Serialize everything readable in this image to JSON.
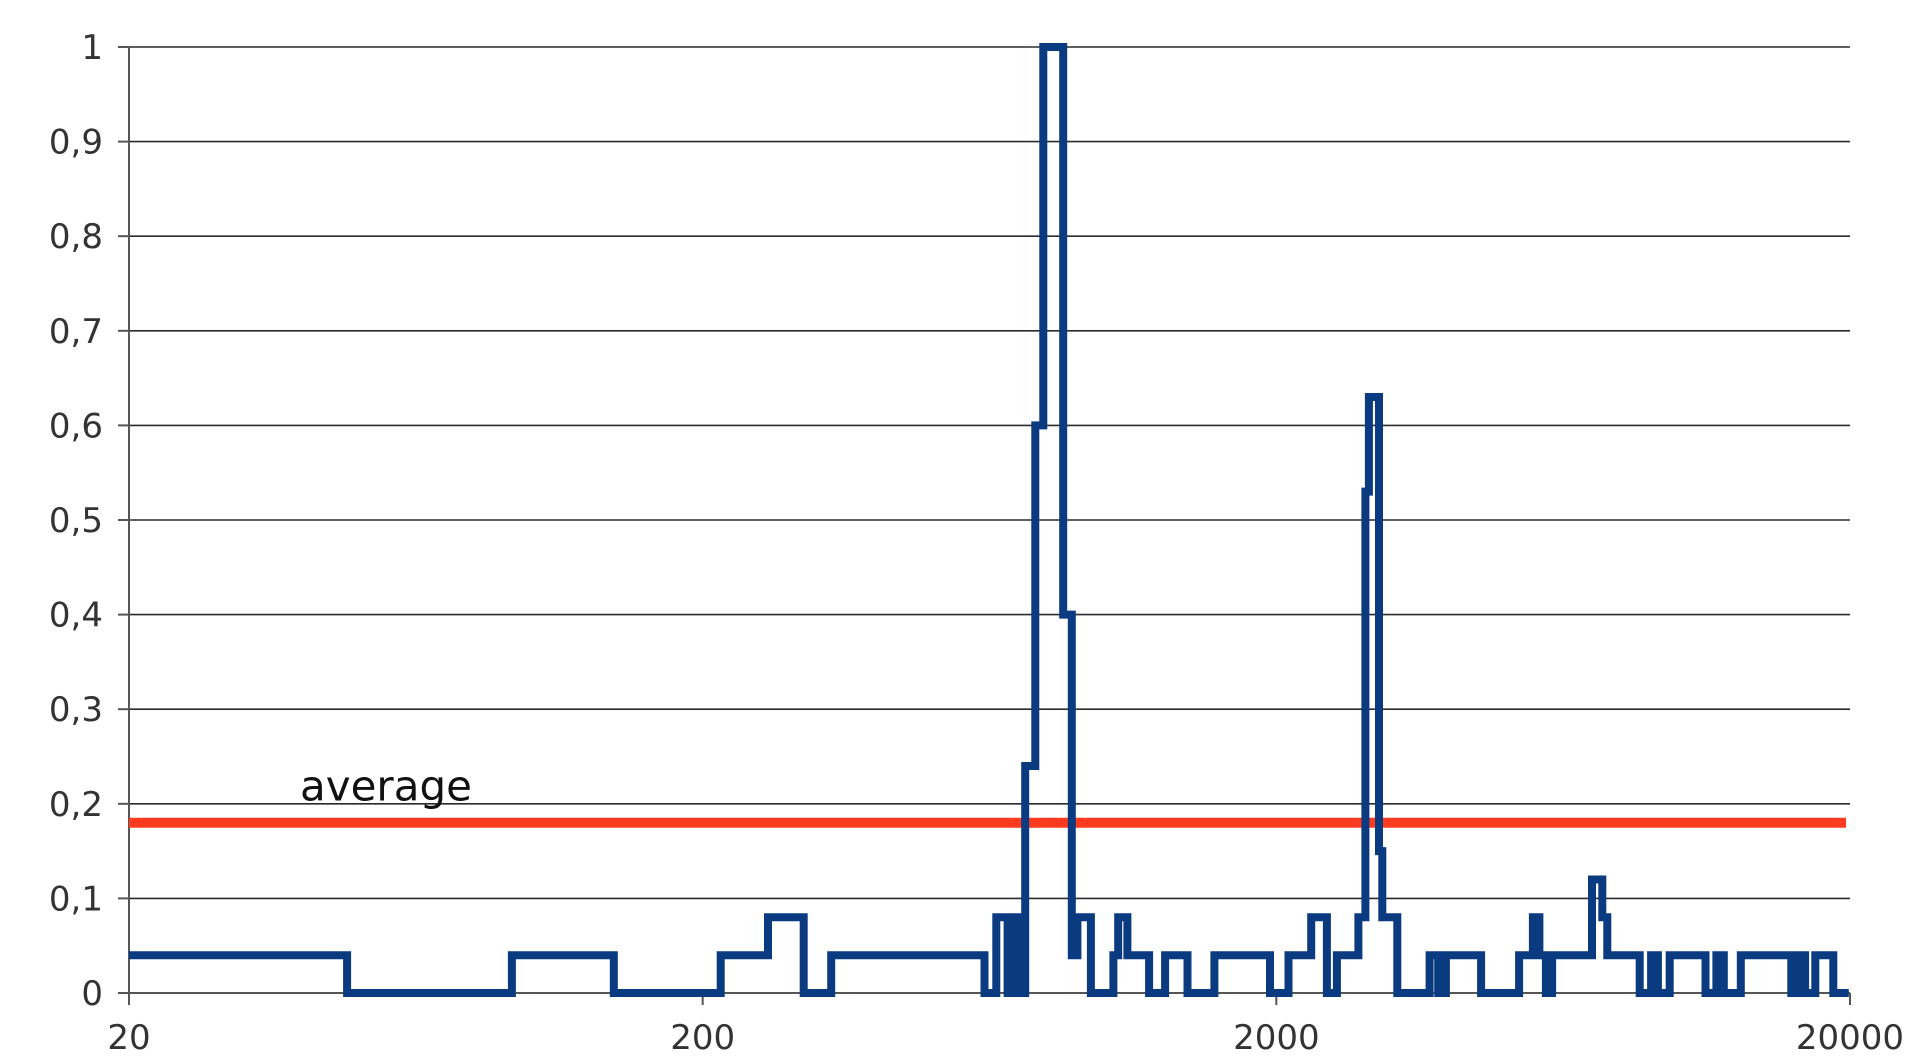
{
  "chart_data": {
    "type": "line",
    "title": "",
    "xlabel": "",
    "ylabel": "",
    "x_scale": "log",
    "xlim": [
      20,
      20000
    ],
    "ylim": [
      0,
      1
    ],
    "x_ticks": [
      20,
      200,
      2000,
      20000
    ],
    "x_tick_labels": [
      "20",
      "200",
      "2000",
      "20000"
    ],
    "y_ticks": [
      0,
      0.1,
      0.2,
      0.3,
      0.4,
      0.5,
      0.6,
      0.7,
      0.8,
      0.9,
      1
    ],
    "y_tick_labels": [
      "0",
      "0,1",
      "0,2",
      "0,3",
      "0,4",
      "0,5",
      "0,6",
      "0,7",
      "0,8",
      "0,9",
      "1"
    ],
    "grid": true,
    "series": [
      {
        "color": "#0a3a80",
        "line_style": "step",
        "points": [
          [
            20,
            0.04
          ],
          [
            48,
            0.04
          ],
          [
            48,
            0
          ],
          [
            93,
            0
          ],
          [
            93,
            0.04
          ],
          [
            140,
            0.04
          ],
          [
            140,
            0
          ],
          [
            215,
            0
          ],
          [
            215,
            0.04
          ],
          [
            260,
            0.04
          ],
          [
            260,
            0.08
          ],
          [
            300,
            0.08
          ],
          [
            300,
            0
          ],
          [
            335,
            0
          ],
          [
            335,
            0.04
          ],
          [
            620,
            0.04
          ],
          [
            620,
            0
          ],
          [
            650,
            0
          ],
          [
            650,
            0.08
          ],
          [
            680,
            0.08
          ],
          [
            680,
            0
          ],
          [
            695,
            0
          ],
          [
            695,
            0.08
          ],
          [
            710,
            0.08
          ],
          [
            710,
            0
          ],
          [
            730,
            0
          ],
          [
            730,
            0.24
          ],
          [
            760,
            0.24
          ],
          [
            760,
            0.6
          ],
          [
            785,
            0.6
          ],
          [
            785,
            1
          ],
          [
            850,
            1
          ],
          [
            850,
            0.4
          ],
          [
            880,
            0.4
          ],
          [
            880,
            0.04
          ],
          [
            900,
            0.04
          ],
          [
            900,
            0.08
          ],
          [
            950,
            0.08
          ],
          [
            950,
            0
          ],
          [
            1040,
            0
          ],
          [
            1040,
            0.04
          ],
          [
            1060,
            0.04
          ],
          [
            1060,
            0.08
          ],
          [
            1100,
            0.08
          ],
          [
            1100,
            0.04
          ],
          [
            1200,
            0.04
          ],
          [
            1200,
            0
          ],
          [
            1280,
            0
          ],
          [
            1280,
            0.04
          ],
          [
            1400,
            0.04
          ],
          [
            1400,
            0
          ],
          [
            1560,
            0
          ],
          [
            1560,
            0.04
          ],
          [
            1950,
            0.04
          ],
          [
            1950,
            0
          ],
          [
            2100,
            0
          ],
          [
            2100,
            0.04
          ],
          [
            2300,
            0.04
          ],
          [
            2300,
            0.08
          ],
          [
            2450,
            0.08
          ],
          [
            2450,
            0
          ],
          [
            2550,
            0
          ],
          [
            2550,
            0.04
          ],
          [
            2780,
            0.04
          ],
          [
            2780,
            0.08
          ],
          [
            2860,
            0.08
          ],
          [
            2860,
            0.53
          ],
          [
            2900,
            0.53
          ],
          [
            2900,
            0.63
          ],
          [
            3020,
            0.63
          ],
          [
            3020,
            0.15
          ],
          [
            3060,
            0.15
          ],
          [
            3060,
            0.08
          ],
          [
            3250,
            0.08
          ],
          [
            3250,
            0
          ],
          [
            3700,
            0
          ],
          [
            3700,
            0.04
          ],
          [
            3830,
            0.04
          ],
          [
            3830,
            0
          ],
          [
            3950,
            0
          ],
          [
            3950,
            0.04
          ],
          [
            4550,
            0.04
          ],
          [
            4550,
            0
          ],
          [
            5300,
            0
          ],
          [
            5300,
            0.04
          ],
          [
            5600,
            0.04
          ],
          [
            5600,
            0.08
          ],
          [
            5750,
            0.08
          ],
          [
            5750,
            0.04
          ],
          [
            5900,
            0.04
          ],
          [
            5900,
            0
          ],
          [
            6050,
            0
          ],
          [
            6050,
            0.04
          ],
          [
            7100,
            0.04
          ],
          [
            7100,
            0.12
          ],
          [
            7400,
            0.12
          ],
          [
            7400,
            0.08
          ],
          [
            7550,
            0.08
          ],
          [
            7550,
            0.04
          ],
          [
            8600,
            0.04
          ],
          [
            8600,
            0
          ],
          [
            9000,
            0
          ],
          [
            9000,
            0.04
          ],
          [
            9250,
            0.04
          ],
          [
            9250,
            0
          ],
          [
            9700,
            0
          ],
          [
            9700,
            0.04
          ],
          [
            11200,
            0.04
          ],
          [
            11200,
            0
          ],
          [
            11700,
            0
          ],
          [
            11700,
            0.04
          ],
          [
            12050,
            0.04
          ],
          [
            12050,
            0
          ],
          [
            12900,
            0
          ],
          [
            12900,
            0.04
          ],
          [
            15800,
            0.04
          ],
          [
            15800,
            0
          ],
          [
            16200,
            0
          ],
          [
            16200,
            0.04
          ],
          [
            16700,
            0.04
          ],
          [
            16700,
            0
          ],
          [
            17400,
            0
          ],
          [
            17400,
            0.04
          ],
          [
            18700,
            0.04
          ],
          [
            18700,
            0
          ],
          [
            19900,
            0
          ]
        ]
      }
    ],
    "reference_lines": [
      {
        "label": "average",
        "y": 0.18,
        "color": "#ff3b1f"
      }
    ]
  }
}
